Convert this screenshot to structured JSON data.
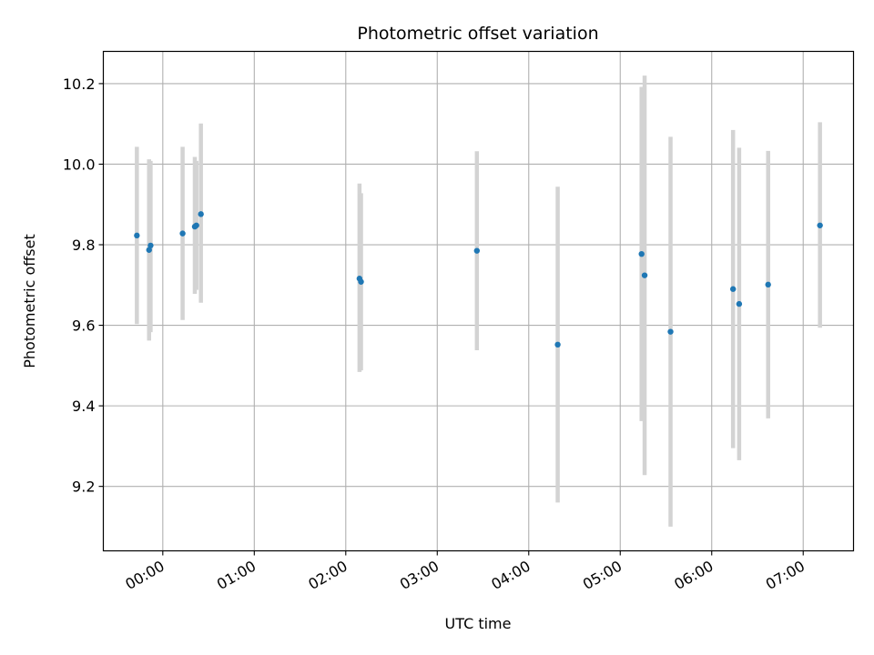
{
  "chart_data": {
    "type": "scatter",
    "title": "Photometric offset variation",
    "xlabel": "UTC time",
    "ylabel": "Photometric offset",
    "x_axis_kind": "time",
    "xlim": [
      "23:21",
      "07:33"
    ],
    "ylim": [
      9.04,
      10.28
    ],
    "x_ticks": [
      "00:00",
      "01:00",
      "02:00",
      "03:00",
      "04:00",
      "05:00",
      "06:00",
      "07:00"
    ],
    "y_ticks": [
      "9.2",
      "9.4",
      "9.6",
      "9.8",
      "10.0",
      "10.2"
    ],
    "grid": true,
    "legend": "none",
    "colors": {
      "points": "#1f77b4",
      "error_bars": "#d3d3d3",
      "grid": "#b0b0b0"
    },
    "points": [
      {
        "x": "23:43",
        "y": 9.823,
        "y_low": 9.603,
        "y_high": 10.043
      },
      {
        "x": "23:51",
        "y": 9.787,
        "y_low": 9.562,
        "y_high": 10.012
      },
      {
        "x": "23:52",
        "y": 9.798,
        "y_low": 9.583,
        "y_high": 10.008
      },
      {
        "x": "00:13",
        "y": 9.828,
        "y_low": 9.613,
        "y_high": 10.043
      },
      {
        "x": "00:21",
        "y": 9.845,
        "y_low": 9.678,
        "y_high": 10.018
      },
      {
        "x": "00:22",
        "y": 9.848,
        "y_low": 9.688,
        "y_high": 10.008
      },
      {
        "x": "00:25",
        "y": 9.876,
        "y_low": 9.656,
        "y_high": 10.101
      },
      {
        "x": "02:09",
        "y": 9.716,
        "y_low": 9.484,
        "y_high": 9.952
      },
      {
        "x": "02:10",
        "y": 9.708,
        "y_low": 9.488,
        "y_high": 9.928
      },
      {
        "x": "03:26",
        "y": 9.785,
        "y_low": 9.538,
        "y_high": 10.032
      },
      {
        "x": "04:19",
        "y": 9.552,
        "y_low": 9.16,
        "y_high": 9.944
      },
      {
        "x": "05:14",
        "y": 9.777,
        "y_low": 9.362,
        "y_high": 10.192
      },
      {
        "x": "05:16",
        "y": 9.724,
        "y_low": 9.228,
        "y_high": 10.22
      },
      {
        "x": "05:33",
        "y": 9.584,
        "y_low": 9.1,
        "y_high": 10.068
      },
      {
        "x": "06:14",
        "y": 9.69,
        "y_low": 9.295,
        "y_high": 10.085
      },
      {
        "x": "06:18",
        "y": 9.653,
        "y_low": 9.265,
        "y_high": 10.041
      },
      {
        "x": "06:37",
        "y": 9.701,
        "y_low": 9.369,
        "y_high": 10.033
      },
      {
        "x": "07:11",
        "y": 9.848,
        "y_low": 9.594,
        "y_high": 10.104
      }
    ]
  }
}
